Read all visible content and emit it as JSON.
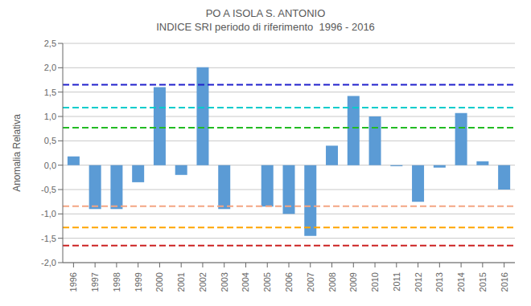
{
  "chart_data": {
    "type": "bar",
    "title": "PO A ISOLA S. ANTONIO",
    "subtitle": "INDICE SRI periodo di riferimento  1996 - 2016",
    "ylabel": "Anomalia Relativa",
    "categories": [
      "1996",
      "1997",
      "1998",
      "1999",
      "2000",
      "2001",
      "2002",
      "2003",
      "2004",
      "2005",
      "2006",
      "2007",
      "2008",
      "2009",
      "2010",
      "2011",
      "2012",
      "2013",
      "2014",
      "2015",
      "2016"
    ],
    "values": [
      0.18,
      -0.9,
      -0.9,
      -0.35,
      1.6,
      -0.2,
      2.01,
      -0.9,
      0.0,
      -0.85,
      -1.0,
      -1.45,
      0.4,
      1.42,
      1.0,
      -0.02,
      -0.75,
      -0.05,
      1.07,
      0.08,
      -0.5
    ],
    "color": "#5B9BD5",
    "ref_lines": [
      {
        "y": 1.65,
        "color": "#2020CC",
        "line_style": "dashed"
      },
      {
        "y": 1.18,
        "color": "#00CCCC",
        "line_style": "dashed"
      },
      {
        "y": 0.77,
        "color": "#22BB22",
        "line_style": "dashed"
      },
      {
        "y": -0.84,
        "color": "#F4A582",
        "line_style": "dashed"
      },
      {
        "y": -1.28,
        "color": "#FFA500",
        "line_style": "dashed"
      },
      {
        "y": -1.65,
        "color": "#CC2222",
        "line_style": "dashed"
      }
    ],
    "ylim": [
      -2.0,
      2.5
    ],
    "yticks": [
      {
        "value": -2.0,
        "label": "-2,0"
      },
      {
        "value": -1.5,
        "label": "-1,5"
      },
      {
        "value": -1.0,
        "label": "-1,0"
      },
      {
        "value": -0.5,
        "label": "-0,5"
      },
      {
        "value": 0.0,
        "label": "0,0"
      },
      {
        "value": 0.5,
        "label": "0,5"
      },
      {
        "value": 1.0,
        "label": "1,0"
      },
      {
        "value": 1.5,
        "label": "1,5"
      },
      {
        "value": 2.0,
        "label": "2,0"
      },
      {
        "value": 2.5,
        "label": "2,5"
      }
    ],
    "grid": true
  }
}
